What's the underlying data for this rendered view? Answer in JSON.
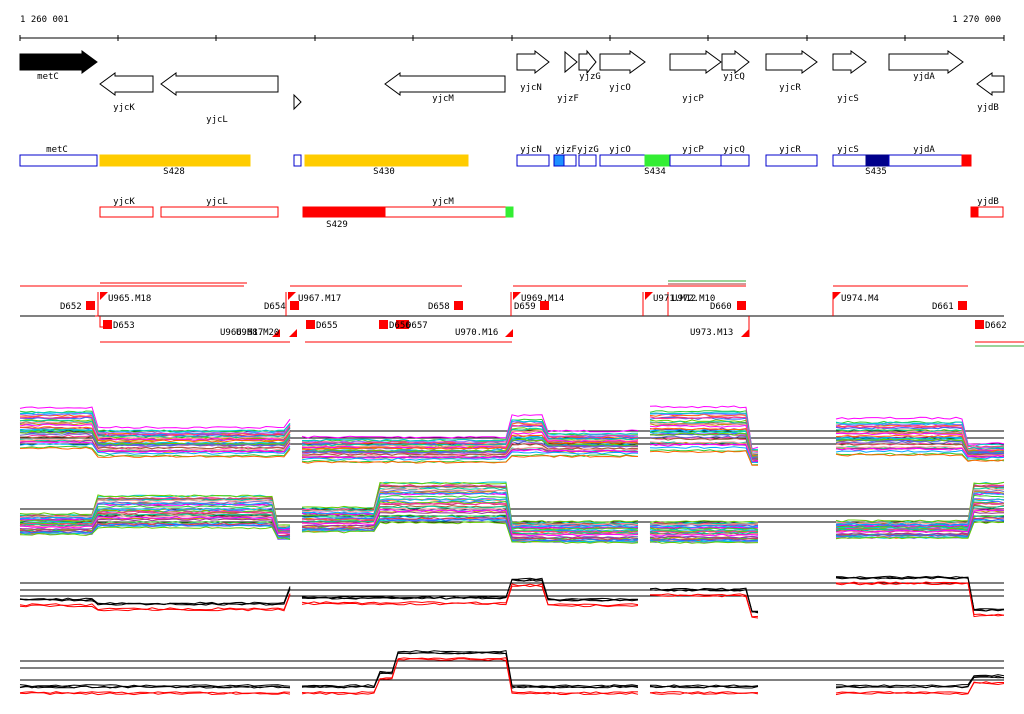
{
  "axis": {
    "start_label": "1 260 001",
    "end_label": "1 270 000"
  },
  "genes_row1": [
    {
      "name": "metC",
      "dir": "right",
      "filled": true
    },
    {
      "name": "yjcK",
      "dir": "left"
    },
    {
      "name": "yjcL",
      "dir": "left"
    },
    {
      "name": "yjcM",
      "dir": "left"
    },
    {
      "name": "yjcN",
      "dir": "right"
    },
    {
      "name": "yjzF",
      "dir": "right"
    },
    {
      "name": "yjzG",
      "dir": "right"
    },
    {
      "name": "yjcO",
      "dir": "right"
    },
    {
      "name": "yjcP",
      "dir": "right"
    },
    {
      "name": "yjcQ",
      "dir": "right"
    },
    {
      "name": "yjcR",
      "dir": "right"
    },
    {
      "name": "yjcS",
      "dir": "right"
    },
    {
      "name": "yjdA",
      "dir": "right"
    },
    {
      "name": "yjdB",
      "dir": "left"
    }
  ],
  "segments_plus": [
    {
      "name": "metC"
    },
    {
      "name": "yjcN"
    },
    {
      "name": "yjzF"
    },
    {
      "name": "yjzG"
    },
    {
      "name": "yjcO"
    },
    {
      "name": "yjcP"
    },
    {
      "name": "yjcQ"
    },
    {
      "name": "yjcR"
    },
    {
      "name": "yjcS"
    },
    {
      "name": "yjdA"
    }
  ],
  "segment_labels_plus": [
    "S428",
    "S430",
    "S434",
    "S435"
  ],
  "segments_minus": [
    {
      "name": "yjcK"
    },
    {
      "name": "yjcL"
    },
    {
      "name": "yjcM"
    },
    {
      "name": "yjdB"
    }
  ],
  "segment_labels_minus": [
    "S429"
  ],
  "breakpoints_upper": [
    "D652",
    "U965.M18",
    "U967.M17",
    "D654",
    "D658",
    "D659",
    "U969.M14",
    "U971.M12",
    "U972.M10",
    "D660",
    "U974.M4",
    "D661"
  ],
  "breakpoints_lower": [
    "D653",
    "U966.M17",
    "U968.M20",
    "D655",
    "D656",
    "D657",
    "U970.M16",
    "U973.M13",
    "D662"
  ],
  "colors": {
    "gold": "#ffcc00",
    "red": "#ff0000",
    "green": "#33ee33",
    "blue": "#0000cc",
    "navy": "#00008b",
    "light_blue": "#1e90ff"
  }
}
